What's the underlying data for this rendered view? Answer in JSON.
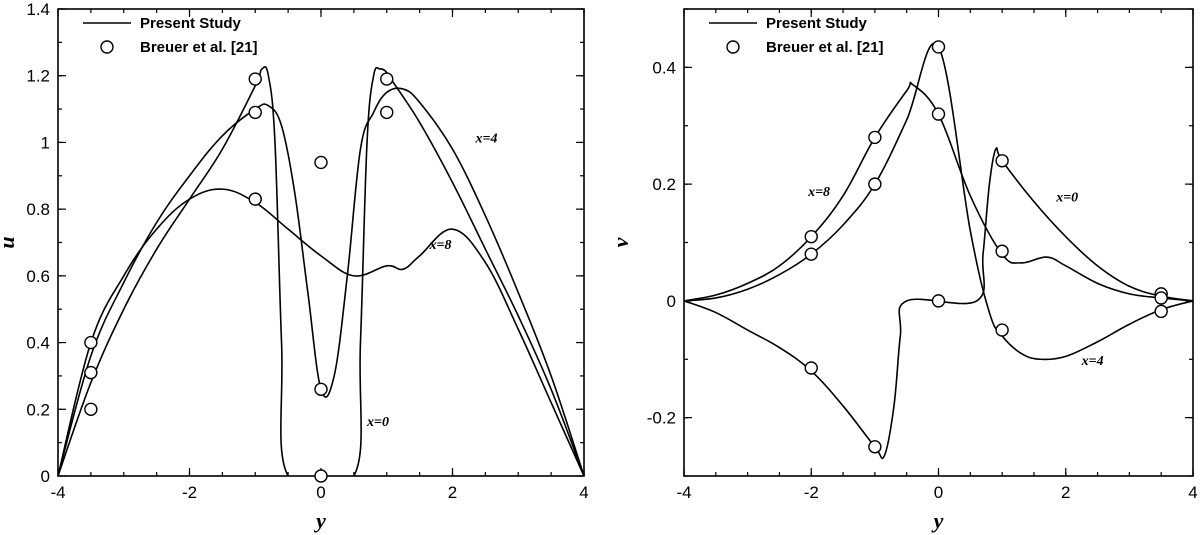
{
  "chart_data": [
    {
      "type": "line",
      "xlabel": "y",
      "ylabel": "u",
      "xlim": [
        -4,
        4
      ],
      "ylim": [
        0,
        1.4
      ],
      "xticks": [
        -4,
        -2,
        0,
        2,
        4
      ],
      "yticks": [
        0,
        0.2,
        0.4,
        0.6,
        0.8,
        1,
        1.2,
        1.4
      ],
      "xtick_labels": [
        "-4",
        "-2",
        "0",
        "2",
        "4"
      ],
      "ytick_labels": [
        "0",
        "0.2",
        "0.4",
        "0.6",
        "0.8",
        "1",
        "1.2",
        "1.4"
      ],
      "legend_position": "top-left",
      "legend": [
        {
          "label": "Present Study",
          "kind": "line"
        },
        {
          "label": "Breuer et al. [21]",
          "kind": "marker"
        }
      ],
      "series": [
        {
          "annotation": "x=0",
          "x": [
            -4,
            -3.5,
            -3,
            -2.5,
            -2,
            -1.5,
            -1,
            -0.9,
            -0.8,
            -0.7,
            -0.6,
            -0.5,
            0.5,
            0.6,
            0.7,
            0.8,
            0.9,
            1.0,
            1.1,
            1.5,
            2,
            2.5,
            3,
            3.5,
            4
          ],
          "y": [
            0,
            0.28,
            0.5,
            0.68,
            0.83,
            0.98,
            1.17,
            1.22,
            1.2,
            1.0,
            0.4,
            0,
            0,
            0.4,
            1.0,
            1.2,
            1.22,
            1.21,
            1.18,
            1.06,
            0.88,
            0.68,
            0.48,
            0.26,
            0
          ]
        },
        {
          "annotation": "x=4",
          "x": [
            -4,
            -3.5,
            -3,
            -2.5,
            -2,
            -1.5,
            -1,
            -0.8,
            -0.6,
            -0.4,
            -0.2,
            0,
            0.2,
            0.4,
            0.6,
            0.8,
            1.0,
            1.25,
            1.5,
            2,
            2.5,
            3,
            3.5,
            4
          ],
          "y": [
            0,
            0.36,
            0.58,
            0.76,
            0.9,
            1.02,
            1.1,
            1.11,
            1.05,
            0.85,
            0.55,
            0.26,
            0.3,
            0.6,
            0.98,
            1.09,
            1.15,
            1.16,
            1.12,
            0.98,
            0.78,
            0.55,
            0.3,
            0
          ]
        },
        {
          "annotation": "x=8",
          "x": [
            -4,
            -3.5,
            -3,
            -2.5,
            -2,
            -1.5,
            -1,
            -0.5,
            0,
            0.5,
            1.0,
            1.25,
            1.5,
            2,
            2.5,
            3,
            3.5,
            4
          ],
          "y": [
            0,
            0.4,
            0.6,
            0.74,
            0.83,
            0.86,
            0.82,
            0.74,
            0.66,
            0.6,
            0.63,
            0.62,
            0.66,
            0.74,
            0.64,
            0.44,
            0.22,
            0
          ]
        }
      ],
      "reference_points": {
        "label": "Breuer et al. [21]",
        "x": [
          -3.5,
          -3.5,
          -3.5,
          -1,
          -1,
          -1,
          0,
          0,
          0,
          1,
          1
        ],
        "y": [
          0.4,
          0.31,
          0.2,
          1.19,
          1.09,
          0.83,
          0.94,
          0.26,
          0,
          1.19,
          1.09
        ]
      },
      "annotations": [
        {
          "text": "x=4",
          "x": 2.35,
          "y": 1.0
        },
        {
          "text": "x=8",
          "x": 1.65,
          "y": 0.68
        },
        {
          "text": "x=0",
          "x": 0.7,
          "y": 0.15
        }
      ]
    },
    {
      "type": "line",
      "xlabel": "y",
      "ylabel": "v",
      "xlim": [
        -4,
        4
      ],
      "ylim": [
        -0.3,
        0.5
      ],
      "xticks": [
        -4,
        -2,
        0,
        2,
        4
      ],
      "yticks": [
        -0.2,
        0,
        0.2,
        0.4
      ],
      "xtick_labels": [
        "-4",
        "-2",
        "0",
        "2",
        "4"
      ],
      "ytick_labels": [
        "-0.2",
        "0",
        "0.2",
        "0.4"
      ],
      "legend_position": "top-left",
      "legend": [
        {
          "label": "Present Study",
          "kind": "line"
        },
        {
          "label": "Breuer et al. [21]",
          "kind": "marker"
        }
      ],
      "series": [
        {
          "annotation": "x=0",
          "x": [
            -4,
            -3.5,
            -3,
            -2.5,
            -2,
            -1.5,
            -1.0,
            -0.85,
            -0.7,
            -0.6,
            -0.5,
            0.6,
            0.7,
            0.8,
            0.9,
            1.0,
            1.5,
            2,
            2.5,
            3,
            3.5,
            4
          ],
          "y": [
            0,
            -0.02,
            -0.05,
            -0.08,
            -0.12,
            -0.18,
            -0.25,
            -0.265,
            -0.18,
            -0.06,
            0,
            0,
            0.08,
            0.2,
            0.26,
            0.24,
            0.17,
            0.11,
            0.06,
            0.025,
            0.008,
            0
          ]
        },
        {
          "annotation": "x=4",
          "x": [
            -4,
            -3.5,
            -3,
            -2.5,
            -2,
            -1.5,
            -1,
            -0.5,
            0,
            0.5,
            0.8,
            1.0,
            1.3,
            1.6,
            2,
            2.5,
            3,
            3.5,
            4
          ],
          "y": [
            0,
            0.005,
            0.02,
            0.045,
            0.08,
            0.13,
            0.2,
            0.31,
            0.435,
            0.12,
            -0.02,
            -0.06,
            -0.09,
            -0.1,
            -0.095,
            -0.07,
            -0.04,
            -0.015,
            0
          ]
        },
        {
          "annotation": "x=8",
          "x": [
            -4,
            -3.5,
            -3,
            -2.5,
            -2,
            -1.5,
            -1,
            -0.5,
            -0.4,
            0,
            0.5,
            1.0,
            1.3,
            1.7,
            2,
            2.5,
            3,
            3.5,
            4
          ],
          "y": [
            0,
            0.01,
            0.03,
            0.06,
            0.11,
            0.18,
            0.28,
            0.36,
            0.37,
            0.32,
            0.18,
            0.08,
            0.065,
            0.075,
            0.06,
            0.03,
            0.012,
            0.005,
            0
          ]
        }
      ],
      "reference_points": {
        "label": "Breuer et al. [21]",
        "x": [
          -2,
          -2,
          -2,
          -1,
          -1,
          -1,
          0,
          0,
          0,
          1,
          1,
          1,
          3.5,
          3.5,
          3.5
        ],
        "y": [
          0.11,
          0.08,
          -0.115,
          0.28,
          0.2,
          -0.25,
          0.435,
          0.32,
          0,
          0.24,
          0.085,
          -0.05,
          0.012,
          0.005,
          -0.018
        ]
      },
      "annotations": [
        {
          "text": "x=8",
          "x": -2.05,
          "y": 0.18
        },
        {
          "text": "x=0",
          "x": 1.85,
          "y": 0.17
        },
        {
          "text": "x=4",
          "x": 2.25,
          "y": -0.11
        }
      ]
    }
  ]
}
